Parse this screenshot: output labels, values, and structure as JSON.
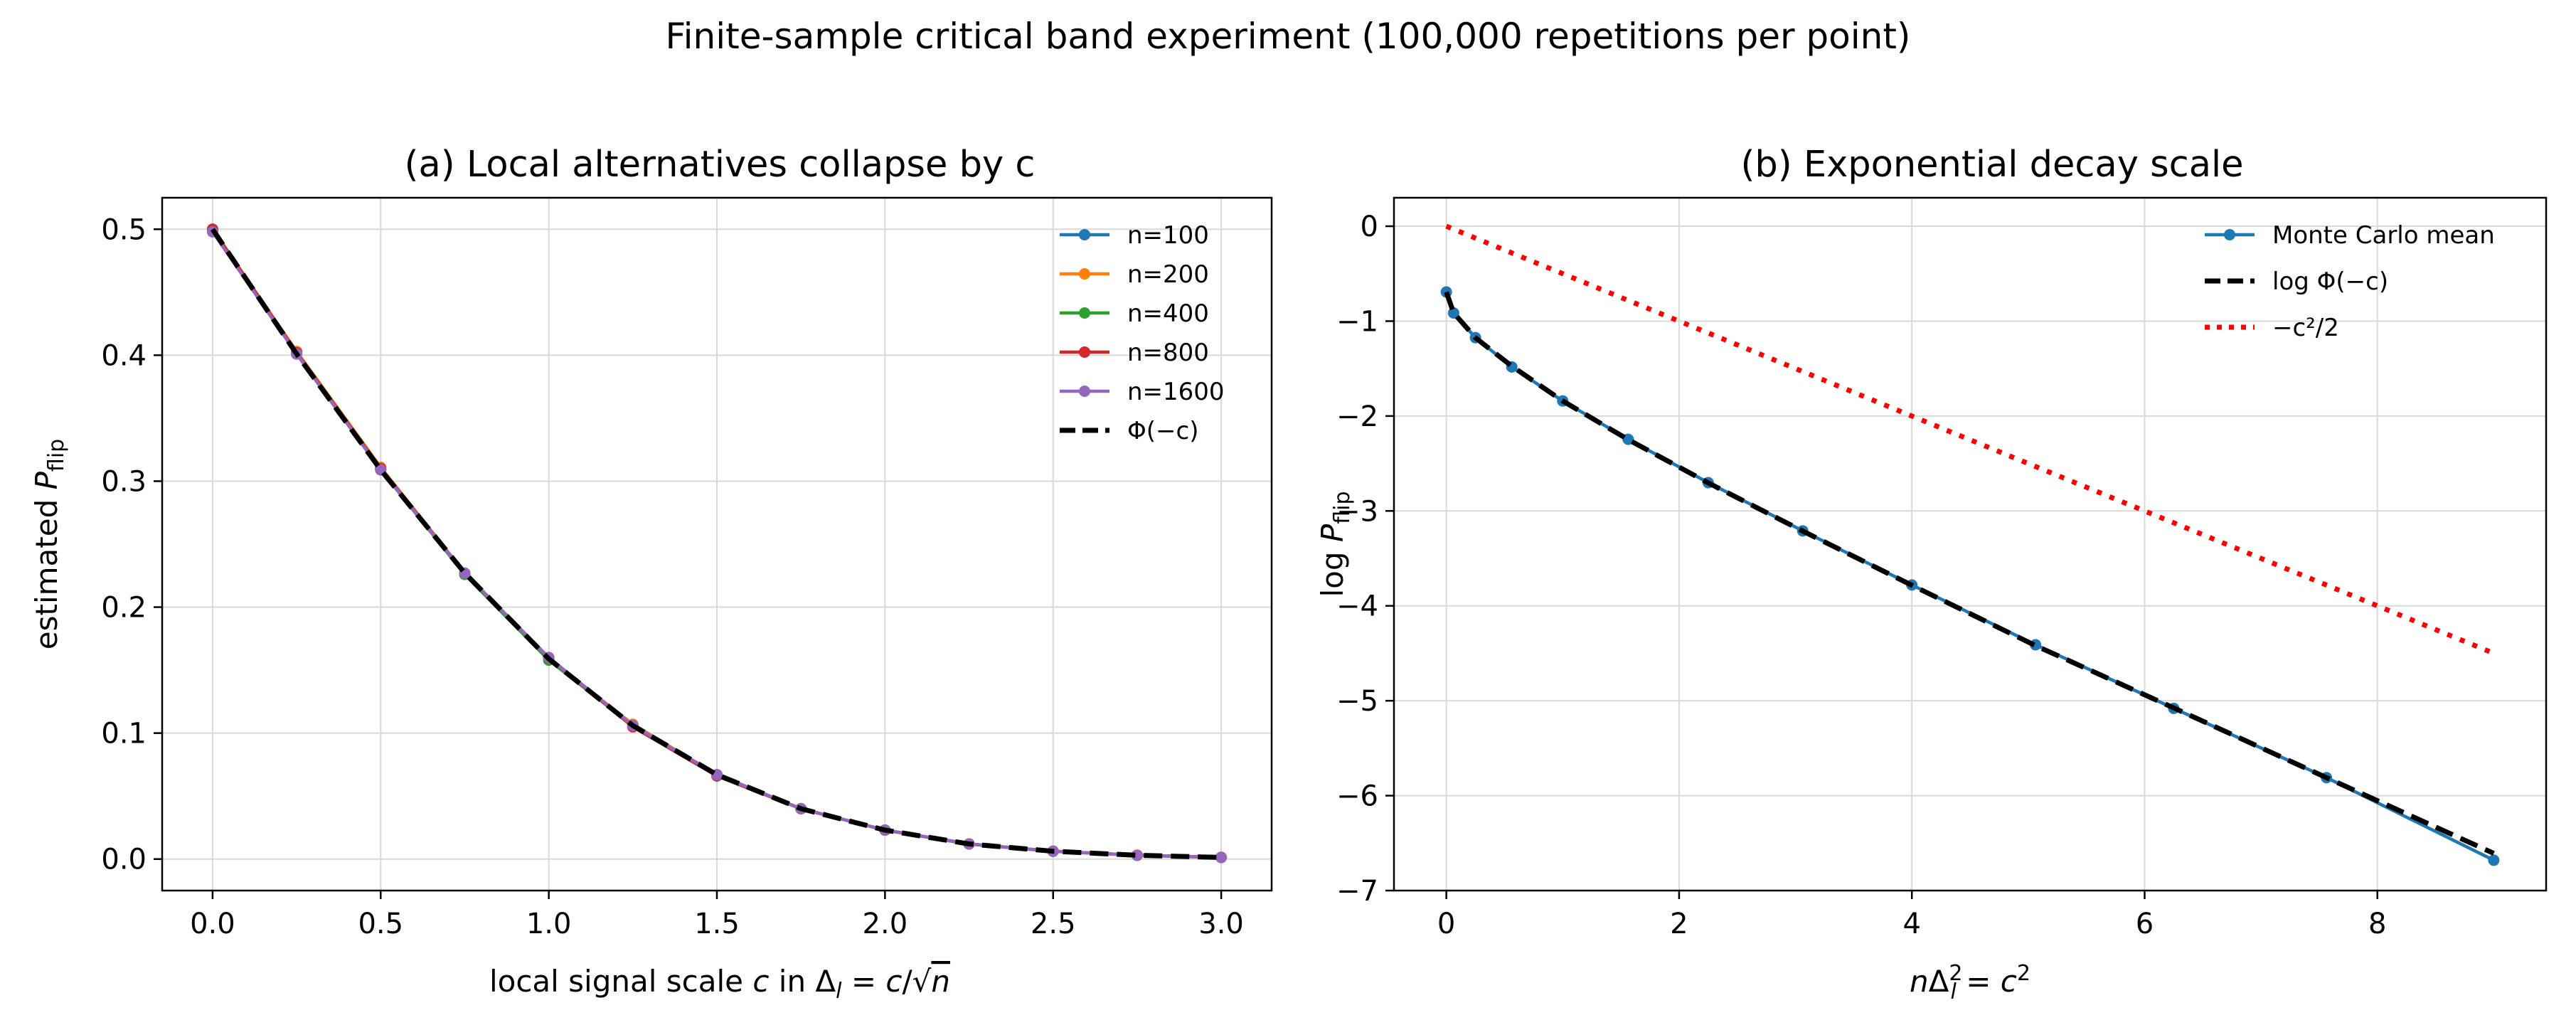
{
  "figure": {
    "suptitle": "Finite-sample critical band experiment (100,000 repetitions per point)"
  },
  "colors": {
    "n100": "#1f77b4",
    "n200": "#ff7f0e",
    "n400": "#2ca02c",
    "n800": "#d62728",
    "n1600": "#9467bd",
    "theory": "#000000",
    "reference": "#ff0000"
  },
  "chart_data": [
    {
      "type": "line",
      "title": "(a) Local alternatives collapse by c",
      "xlabel": "local signal scale c in Δ_l = c/√n",
      "ylabel": "estimated P_flip",
      "xlim": [
        -0.15,
        3.15
      ],
      "ylim": [
        -0.025,
        0.525
      ],
      "xticks": [
        0.0,
        0.5,
        1.0,
        1.5,
        2.0,
        2.5,
        3.0
      ],
      "xtick_labels": [
        "0.0",
        "0.5",
        "1.0",
        "1.5",
        "2.0",
        "2.5",
        "3.0"
      ],
      "yticks": [
        0.0,
        0.1,
        0.2,
        0.3,
        0.4,
        0.5
      ],
      "ytick_labels": [
        "0.0",
        "0.1",
        "0.2",
        "0.3",
        "0.4",
        "0.5"
      ],
      "grid": true,
      "legend_position": "top-right",
      "x": [
        0.0,
        0.25,
        0.5,
        0.75,
        1.0,
        1.25,
        1.5,
        1.75,
        2.0,
        2.25,
        2.5,
        2.75,
        3.0
      ],
      "series": [
        {
          "name": "n=100",
          "color_key": "n100",
          "style": "solid-marker",
          "values": [
            0.5,
            0.402,
            0.31,
            0.226,
            0.158,
            0.106,
            0.067,
            0.04,
            0.023,
            0.012,
            0.0062,
            0.003,
            0.0013
          ]
        },
        {
          "name": "n=200",
          "color_key": "n200",
          "style": "solid-marker",
          "values": [
            0.5,
            0.403,
            0.311,
            0.227,
            0.159,
            0.107,
            0.067,
            0.04,
            0.023,
            0.012,
            0.0062,
            0.003,
            0.0014
          ]
        },
        {
          "name": "n=400",
          "color_key": "n400",
          "style": "solid-marker",
          "values": [
            0.499,
            0.401,
            0.309,
            0.226,
            0.158,
            0.106,
            0.067,
            0.04,
            0.023,
            0.012,
            0.0062,
            0.003,
            0.0013
          ]
        },
        {
          "name": "n=800",
          "color_key": "n800",
          "style": "solid-marker",
          "values": [
            0.5,
            0.402,
            0.31,
            0.227,
            0.16,
            0.105,
            0.066,
            0.04,
            0.023,
            0.012,
            0.0063,
            0.003,
            0.0013
          ]
        },
        {
          "name": "n=1600",
          "color_key": "n1600",
          "style": "solid-marker",
          "values": [
            0.498,
            0.401,
            0.309,
            0.227,
            0.16,
            0.106,
            0.067,
            0.04,
            0.023,
            0.012,
            0.0062,
            0.003,
            0.0013
          ]
        },
        {
          "name": "Φ(−c)",
          "color_key": "theory",
          "style": "dashed",
          "values": [
            0.5,
            0.401,
            0.309,
            0.227,
            0.159,
            0.106,
            0.067,
            0.04,
            0.023,
            0.012,
            0.0062,
            0.003,
            0.0013
          ]
        }
      ]
    },
    {
      "type": "line",
      "title": "(b) Exponential decay scale",
      "xlabel": "nΔ_l² = c²",
      "ylabel": "log P_flip",
      "xlim": [
        -0.45,
        9.45
      ],
      "ylim": [
        -7.0,
        0.3
      ],
      "xticks": [
        0,
        2,
        4,
        6,
        8
      ],
      "xtick_labels": [
        "0",
        "2",
        "4",
        "6",
        "8"
      ],
      "yticks": [
        0,
        -1,
        -2,
        -3,
        -4,
        -5,
        -6,
        -7
      ],
      "ytick_labels": [
        "0",
        "−1",
        "−2",
        "−3",
        "−4",
        "−5",
        "−6",
        "−7"
      ],
      "grid": true,
      "legend_position": "top-right",
      "x": [
        0.0,
        0.0625,
        0.25,
        0.5625,
        1.0,
        1.5625,
        2.25,
        3.0625,
        4.0,
        5.0625,
        6.25,
        7.5625,
        9.0
      ],
      "series": [
        {
          "name": "Monte Carlo mean",
          "color_key": "n100",
          "style": "solid-marker",
          "values": [
            -0.693,
            -0.914,
            -1.174,
            -1.483,
            -1.841,
            -2.245,
            -2.702,
            -3.21,
            -3.78,
            -4.41,
            -5.08,
            -5.81,
            -6.68
          ]
        },
        {
          "name": "log Φ(−c)",
          "color_key": "theory",
          "style": "dashed",
          "values": [
            -0.693,
            -0.913,
            -1.175,
            -1.475,
            -1.841,
            -2.248,
            -2.704,
            -3.212,
            -3.783,
            -4.419,
            -5.075,
            -5.81,
            -6.608
          ]
        },
        {
          "name": "−c²/2",
          "color_key": "reference",
          "style": "dotted",
          "values": [
            0.0,
            -0.03125,
            -0.125,
            -0.28125,
            -0.5,
            -0.78125,
            -1.125,
            -1.53125,
            -2.0,
            -2.53125,
            -3.125,
            -3.78125,
            -4.5
          ]
        }
      ]
    }
  ]
}
